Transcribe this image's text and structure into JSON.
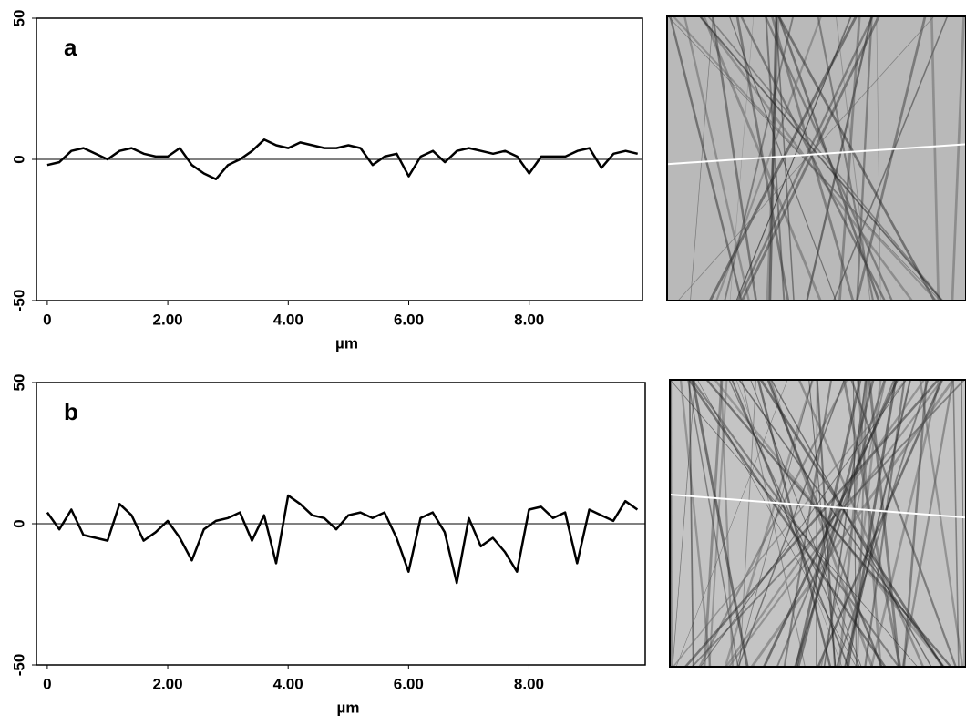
{
  "chart_data": [
    {
      "type": "line",
      "label": "a",
      "x_label": "µm",
      "x": [
        0,
        0.2,
        0.4,
        0.6,
        0.8,
        1.0,
        1.2,
        1.4,
        1.6,
        1.8,
        2.0,
        2.2,
        2.4,
        2.6,
        2.8,
        3.0,
        3.2,
        3.4,
        3.6,
        3.8,
        4.0,
        4.2,
        4.4,
        4.6,
        4.8,
        5.0,
        5.2,
        5.4,
        5.6,
        5.8,
        6.0,
        6.2,
        6.4,
        6.6,
        6.8,
        7.0,
        7.2,
        7.4,
        7.6,
        7.8,
        8.0,
        8.2,
        8.4,
        8.6,
        8.8,
        9.0,
        9.2,
        9.4,
        9.6,
        9.8
      ],
      "series": [
        {
          "color": "#000000",
          "values": [
            -2,
            -1,
            3,
            4,
            2,
            0,
            3,
            4,
            2,
            1,
            1,
            4,
            -2,
            -5,
            -7,
            -2,
            0,
            3,
            7,
            5,
            4,
            6,
            5,
            4,
            4,
            5,
            4,
            -2,
            1,
            2,
            -6,
            1,
            3,
            -1,
            3,
            4,
            3,
            2,
            3,
            1,
            -5,
            1,
            1,
            1,
            3,
            4,
            -3,
            2,
            3,
            2
          ]
        }
      ],
      "xlim": [
        -0.18,
        9.88
      ],
      "ylim": [
        -50,
        50
      ],
      "xticks": [
        0,
        {
          "value": 2,
          "label": "2.00"
        },
        {
          "value": 4,
          "label": "4.00"
        },
        {
          "value": 6,
          "label": "6.00"
        },
        {
          "value": 8,
          "label": "8.00"
        }
      ],
      "yticks": [
        -50,
        0,
        50
      ]
    },
    {
      "type": "line",
      "label": "b",
      "x_label": "µm",
      "x": [
        0,
        0.2,
        0.4,
        0.6,
        0.8,
        1.0,
        1.2,
        1.4,
        1.6,
        1.8,
        2.0,
        2.2,
        2.4,
        2.6,
        2.8,
        3.0,
        3.2,
        3.4,
        3.6,
        3.8,
        4.0,
        4.2,
        4.4,
        4.6,
        4.8,
        5.0,
        5.2,
        5.4,
        5.6,
        5.8,
        6.0,
        6.2,
        6.4,
        6.6,
        6.8,
        7.0,
        7.2,
        7.4,
        7.6,
        7.8,
        8.0,
        8.2,
        8.4,
        8.6,
        8.8,
        9.0,
        9.2,
        9.4,
        9.6,
        9.8
      ],
      "series": [
        {
          "color": "#000000",
          "values": [
            4,
            -2,
            5,
            -4,
            -5,
            -6,
            7,
            3,
            -6,
            -3,
            1,
            -5,
            -13,
            -2,
            1,
            2,
            4,
            -6,
            3,
            -14,
            10,
            7,
            3,
            2,
            -2,
            3,
            4,
            2,
            4,
            -5,
            -17,
            2,
            4,
            -3,
            -21,
            2,
            -8,
            -5,
            -10,
            -17,
            5,
            6,
            2,
            4,
            -14,
            5,
            3,
            1,
            8,
            5
          ]
        }
      ],
      "xlim": [
        -0.18,
        9.93
      ],
      "ylim": [
        -50,
        50
      ],
      "xticks": [
        0,
        {
          "value": 2,
          "label": "2.00"
        },
        {
          "value": 4,
          "label": "4.00"
        },
        {
          "value": 6,
          "label": "6.00"
        },
        {
          "value": 8,
          "label": "8.00"
        }
      ],
      "yticks": [
        -50,
        0,
        50
      ]
    }
  ]
}
